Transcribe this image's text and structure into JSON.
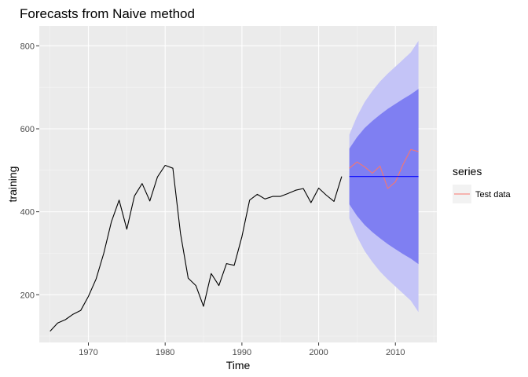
{
  "chart_data": {
    "type": "line",
    "title": "Forecasts from Naive method",
    "xlabel": "Time",
    "ylabel": "training",
    "xlim": [
      1963.6,
      2015.4
    ],
    "ylim": [
      85,
      848
    ],
    "x_ticks": [
      1970,
      1980,
      1990,
      2000,
      2010
    ],
    "y_ticks": [
      200,
      400,
      600,
      800
    ],
    "x_minor_ticks": [
      1965,
      1975,
      1985,
      1995,
      2005,
      2015
    ],
    "y_minor_ticks": [
      100,
      300,
      500,
      700
    ],
    "grid": true,
    "background": "#ebebeb",
    "legend": {
      "title": "series",
      "position": "right",
      "entries": [
        {
          "label": "Test data",
          "color": "#f8766d"
        }
      ]
    },
    "series": [
      {
        "role": "training",
        "color": "#000000",
        "x": [
          1965,
          1966,
          1967,
          1968,
          1969,
          1970,
          1971,
          1972,
          1973,
          1974,
          1975,
          1976,
          1977,
          1978,
          1979,
          1980,
          1981,
          1982,
          1983,
          1984,
          1985,
          1986,
          1987,
          1988,
          1989,
          1990,
          1991,
          1992,
          1993,
          1994,
          1995,
          1996,
          1997,
          1998,
          1999,
          2000,
          2001,
          2002,
          2003
        ],
        "values": [
          112,
          132,
          140,
          153,
          162,
          196,
          238,
          300,
          376,
          428,
          358,
          438,
          468,
          426,
          484,
          512,
          505,
          348,
          240,
          222,
          172,
          251,
          222,
          275,
          271,
          340,
          428,
          442,
          431,
          437,
          437,
          444,
          452,
          456,
          422,
          457,
          440,
          425,
          485
        ]
      },
      {
        "name": "Test data",
        "color": "#f8766d",
        "x": [
          2004,
          2005,
          2006,
          2007,
          2008,
          2009,
          2010,
          2011,
          2012,
          2013
        ],
        "values": [
          505,
          520,
          508,
          493,
          510,
          456,
          472,
          514,
          550,
          545
        ]
      },
      {
        "role": "point forecast",
        "color": "#0000ff",
        "x": [
          2004,
          2013
        ],
        "values": [
          485,
          485
        ]
      }
    ],
    "forecast_intervals": {
      "x": [
        2004,
        2005,
        2006,
        2007,
        2008,
        2009,
        2010,
        2011,
        2012,
        2013
      ],
      "lo80": [
        418,
        390,
        368,
        351,
        336,
        322,
        310,
        298,
        287,
        274
      ],
      "hi80": [
        552,
        580,
        602,
        619,
        634,
        648,
        660,
        672,
        683,
        696
      ],
      "lo95": [
        384,
        340,
        305,
        279,
        256,
        237,
        220,
        203,
        186,
        158
      ],
      "hi95": [
        586,
        630,
        665,
        691,
        714,
        733,
        750,
        767,
        784,
        812
      ],
      "color80": "#7f7ff2",
      "color95": "#c4c4f7"
    }
  }
}
